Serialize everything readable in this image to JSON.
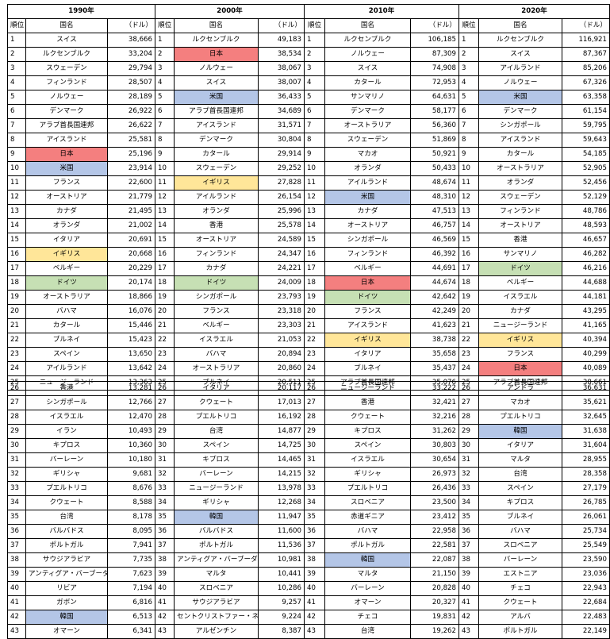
{
  "header": {
    "years": [
      "1990年",
      "2000年",
      "2010年",
      "2020年"
    ],
    "rank_label": "順位",
    "name_label": "国名",
    "value_label": "（ドル）"
  },
  "colors": {
    "japan": "#f47f7f",
    "usa": "#b4c6e7",
    "uk": "#ffe699",
    "germany": "#c6e0b4",
    "korea": "#b4c6e7"
  },
  "columns": [
    {
      "year": "1990年",
      "rows": [
        {
          "rank": "1",
          "name": "スイス",
          "value": "38,666"
        },
        {
          "rank": "2",
          "name": "ルクセンブルク",
          "value": "33,204"
        },
        {
          "rank": "3",
          "name": "スウェーデン",
          "value": "29,794"
        },
        {
          "rank": "4",
          "name": "フィンランド",
          "value": "28,507"
        },
        {
          "rank": "5",
          "name": "ノルウェー",
          "value": "28,189"
        },
        {
          "rank": "6",
          "name": "デンマーク",
          "value": "26,922"
        },
        {
          "rank": "7",
          "name": "アラブ首長国連邦",
          "value": "26,622"
        },
        {
          "rank": "8",
          "name": "アイスランド",
          "value": "25,581"
        },
        {
          "rank": "9",
          "name": "日本",
          "value": "25,196",
          "hl": "japan"
        },
        {
          "rank": "10",
          "name": "米国",
          "value": "23,914",
          "hl": "usa"
        },
        {
          "rank": "11",
          "name": "フランス",
          "value": "22,600"
        },
        {
          "rank": "12",
          "name": "オーストリア",
          "value": "21,779"
        },
        {
          "rank": "13",
          "name": "カナダ",
          "value": "21,495"
        },
        {
          "rank": "14",
          "name": "オランダ",
          "value": "21,002"
        },
        {
          "rank": "15",
          "name": "イタリア",
          "value": "20,691"
        },
        {
          "rank": "16",
          "name": "イギリス",
          "value": "20,668",
          "hl": "uk"
        },
        {
          "rank": "17",
          "name": "ベルギー",
          "value": "20,229"
        },
        {
          "rank": "18",
          "name": "ドイツ",
          "value": "20,174",
          "hl": "germany"
        },
        {
          "rank": "19",
          "name": "オーストラリア",
          "value": "18,866"
        },
        {
          "rank": "20",
          "name": "バハマ",
          "value": "16,076"
        },
        {
          "rank": "21",
          "name": "カタール",
          "value": "15,446"
        },
        {
          "rank": "22",
          "name": "ブルネイ",
          "value": "15,423"
        },
        {
          "rank": "23",
          "name": "スペイン",
          "value": "13,650"
        },
        {
          "rank": "24",
          "name": "アイルランド",
          "value": "13,642"
        },
        {
          "rank": "25",
          "name": "ニュージーランド",
          "value": "13,363"
        },
        {
          "rank": "26",
          "name": "香港",
          "value": "13,281"
        },
        {
          "rank": "27",
          "name": "シンガポール",
          "value": "12,766"
        },
        {
          "rank": "28",
          "name": "イスラエル",
          "value": "12,470"
        },
        {
          "rank": "29",
          "name": "イラン",
          "value": "10,493"
        },
        {
          "rank": "30",
          "name": "キプロス",
          "value": "10,360"
        },
        {
          "rank": "31",
          "name": "バーレーン",
          "value": "10,180"
        },
        {
          "rank": "32",
          "name": "ギリシャ",
          "value": "9,681"
        },
        {
          "rank": "33",
          "name": "プエルトリコ",
          "value": "8,676"
        },
        {
          "rank": "34",
          "name": "クウェート",
          "value": "8,588"
        },
        {
          "rank": "35",
          "name": "台湾",
          "value": "8,178"
        },
        {
          "rank": "36",
          "name": "バルバドス",
          "value": "8,095"
        },
        {
          "rank": "37",
          "name": "ポルトガル",
          "value": "7,941"
        },
        {
          "rank": "38",
          "name": "サウジアラビア",
          "value": "7,735"
        },
        {
          "rank": "39",
          "name": "アンティグア・バーブーダ",
          "value": "7,623"
        },
        {
          "rank": "40",
          "name": "リビア",
          "value": "7,194"
        },
        {
          "rank": "41",
          "name": "ガボン",
          "value": "6,816"
        },
        {
          "rank": "42",
          "name": "韓国",
          "value": "6,513",
          "hl": "korea"
        },
        {
          "rank": "43",
          "name": "オマーン",
          "value": "6,341"
        }
      ]
    },
    {
      "year": "2000年",
      "rows": [
        {
          "rank": "1",
          "name": "ルクセンブルク",
          "value": "49,183"
        },
        {
          "rank": "2",
          "name": "日本",
          "value": "38,534",
          "hl": "japan"
        },
        {
          "rank": "3",
          "name": "ノルウェー",
          "value": "38,067"
        },
        {
          "rank": "4",
          "name": "スイス",
          "value": "38,007"
        },
        {
          "rank": "5",
          "name": "米国",
          "value": "36,433",
          "hl": "usa"
        },
        {
          "rank": "6",
          "name": "アラブ首長国連邦",
          "value": "34,689"
        },
        {
          "rank": "7",
          "name": "アイスランド",
          "value": "31,571"
        },
        {
          "rank": "8",
          "name": "デンマーク",
          "value": "30,804"
        },
        {
          "rank": "9",
          "name": "カタール",
          "value": "29,914"
        },
        {
          "rank": "10",
          "name": "スウェーデン",
          "value": "29,252"
        },
        {
          "rank": "11",
          "name": "イギリス",
          "value": "27,828",
          "hl": "uk"
        },
        {
          "rank": "12",
          "name": "アイルランド",
          "value": "26,154"
        },
        {
          "rank": "13",
          "name": "オランダ",
          "value": "25,996"
        },
        {
          "rank": "14",
          "name": "香港",
          "value": "25,578"
        },
        {
          "rank": "15",
          "name": "オーストリア",
          "value": "24,589"
        },
        {
          "rank": "16",
          "name": "フィンランド",
          "value": "24,347"
        },
        {
          "rank": "17",
          "name": "カナダ",
          "value": "24,221"
        },
        {
          "rank": "18",
          "name": "ドイツ",
          "value": "24,009",
          "hl": "germany"
        },
        {
          "rank": "19",
          "name": "シンガポール",
          "value": "23,793"
        },
        {
          "rank": "20",
          "name": "フランス",
          "value": "23,318"
        },
        {
          "rank": "21",
          "name": "ベルギー",
          "value": "23,303"
        },
        {
          "rank": "22",
          "name": "イスラエル",
          "value": "21,053"
        },
        {
          "rank": "23",
          "name": "バハマ",
          "value": "20,894"
        },
        {
          "rank": "24",
          "name": "オーストラリア",
          "value": "20,860"
        },
        {
          "rank": "25",
          "name": "ブルネイ",
          "value": "20,511"
        },
        {
          "rank": "26",
          "name": "イタリア",
          "value": "20,117"
        },
        {
          "rank": "27",
          "name": "クウェート",
          "value": "17,013"
        },
        {
          "rank": "28",
          "name": "プエルトリコ",
          "value": "16,192"
        },
        {
          "rank": "29",
          "name": "台湾",
          "value": "14,877"
        },
        {
          "rank": "30",
          "name": "スペイン",
          "value": "14,725"
        },
        {
          "rank": "31",
          "name": "キプロス",
          "value": "14,465"
        },
        {
          "rank": "32",
          "name": "バーレーン",
          "value": "14,215"
        },
        {
          "rank": "33",
          "name": "ニュージーランド",
          "value": "13,978"
        },
        {
          "rank": "34",
          "name": "ギリシャ",
          "value": "12,268"
        },
        {
          "rank": "35",
          "name": "韓国",
          "value": "11,947",
          "hl": "korea"
        },
        {
          "rank": "36",
          "name": "バルバドス",
          "value": "11,600"
        },
        {
          "rank": "37",
          "name": "ポルトガル",
          "value": "11,536"
        },
        {
          "rank": "38",
          "name": "アンティグア・バーブーダ",
          "value": "10,981"
        },
        {
          "rank": "39",
          "name": "マルタ",
          "value": "10,441"
        },
        {
          "rank": "40",
          "name": "スロベニア",
          "value": "10,286"
        },
        {
          "rank": "41",
          "name": "サウジアラビア",
          "value": "9,257"
        },
        {
          "rank": "42",
          "name": "セントクリストファー・ネイビス",
          "value": "9,224"
        },
        {
          "rank": "43",
          "name": "アルゼンチン",
          "value": "8,387"
        }
      ]
    },
    {
      "year": "2010年",
      "rows": [
        {
          "rank": "1",
          "name": "ルクセンブルク",
          "value": "106,185"
        },
        {
          "rank": "2",
          "name": "ノルウェー",
          "value": "87,309"
        },
        {
          "rank": "3",
          "name": "スイス",
          "value": "74,908"
        },
        {
          "rank": "4",
          "name": "カタール",
          "value": "72,953"
        },
        {
          "rank": "5",
          "name": "サンマリノ",
          "value": "64,631"
        },
        {
          "rank": "6",
          "name": "デンマーク",
          "value": "58,177"
        },
        {
          "rank": "7",
          "name": "オーストラリア",
          "value": "56,360"
        },
        {
          "rank": "8",
          "name": "スウェーデン",
          "value": "51,869"
        },
        {
          "rank": "9",
          "name": "マカオ",
          "value": "50,921"
        },
        {
          "rank": "10",
          "name": "オランダ",
          "value": "50,433"
        },
        {
          "rank": "11",
          "name": "アイルランド",
          "value": "48,674"
        },
        {
          "rank": "12",
          "name": "米国",
          "value": "48,310",
          "hl": "usa"
        },
        {
          "rank": "13",
          "name": "カナダ",
          "value": "47,513"
        },
        {
          "rank": "14",
          "name": "オーストリア",
          "value": "46,757"
        },
        {
          "rank": "15",
          "name": "シンガポール",
          "value": "46,569"
        },
        {
          "rank": "16",
          "name": "フィンランド",
          "value": "46,392"
        },
        {
          "rank": "17",
          "name": "ベルギー",
          "value": "44,691"
        },
        {
          "rank": "18",
          "name": "日本",
          "value": "44,674",
          "hl": "japan"
        },
        {
          "rank": "19",
          "name": "ドイツ",
          "value": "42,642",
          "hl": "germany"
        },
        {
          "rank": "20",
          "name": "フランス",
          "value": "42,249"
        },
        {
          "rank": "21",
          "name": "アイスランド",
          "value": "41,623"
        },
        {
          "rank": "22",
          "name": "イギリス",
          "value": "38,738",
          "hl": "uk"
        },
        {
          "rank": "23",
          "name": "イタリア",
          "value": "35,658"
        },
        {
          "rank": "24",
          "name": "ブルネイ",
          "value": "35,437"
        },
        {
          "rank": "25",
          "name": "アラブ首長国連邦",
          "value": "35,076"
        },
        {
          "rank": "26",
          "name": "ニュージーランド",
          "value": "33,222"
        },
        {
          "rank": "27",
          "name": "香港",
          "value": "32,421"
        },
        {
          "rank": "28",
          "name": "クウェート",
          "value": "32,216"
        },
        {
          "rank": "29",
          "name": "キプロス",
          "value": "31,262"
        },
        {
          "rank": "30",
          "name": "スペイン",
          "value": "30,803"
        },
        {
          "rank": "31",
          "name": "イスラエル",
          "value": "30,654"
        },
        {
          "rank": "32",
          "name": "ギリシャ",
          "value": "26,973"
        },
        {
          "rank": "33",
          "name": "プエルトリコ",
          "value": "26,436"
        },
        {
          "rank": "34",
          "name": "スロベニア",
          "value": "23,500"
        },
        {
          "rank": "35",
          "name": "赤道ギニア",
          "value": "23,412"
        },
        {
          "rank": "36",
          "name": "バハマ",
          "value": "22,958"
        },
        {
          "rank": "37",
          "name": "ポルトガル",
          "value": "22,581"
        },
        {
          "rank": "38",
          "name": "韓国",
          "value": "22,087",
          "hl": "korea"
        },
        {
          "rank": "39",
          "name": "マルタ",
          "value": "21,150"
        },
        {
          "rank": "40",
          "name": "バーレーン",
          "value": "20,828"
        },
        {
          "rank": "41",
          "name": "オマーン",
          "value": "20,327"
        },
        {
          "rank": "42",
          "name": "チェコ",
          "value": "19,831"
        },
        {
          "rank": "43",
          "name": "台湾",
          "value": "19,262"
        }
      ]
    },
    {
      "year": "2020年",
      "rows": [
        {
          "rank": "1",
          "name": "ルクセンブルク",
          "value": "116,921"
        },
        {
          "rank": "2",
          "name": "スイス",
          "value": "87,367"
        },
        {
          "rank": "3",
          "name": "アイルランド",
          "value": "85,206"
        },
        {
          "rank": "4",
          "name": "ノルウェー",
          "value": "67,326"
        },
        {
          "rank": "5",
          "name": "米国",
          "value": "63,358",
          "hl": "usa"
        },
        {
          "rank": "6",
          "name": "デンマーク",
          "value": "61,154"
        },
        {
          "rank": "7",
          "name": "シンガポール",
          "value": "59,795"
        },
        {
          "rank": "8",
          "name": "アイスランド",
          "value": "59,643"
        },
        {
          "rank": "9",
          "name": "カタール",
          "value": "54,185"
        },
        {
          "rank": "10",
          "name": "オーストラリア",
          "value": "52,905"
        },
        {
          "rank": "11",
          "name": "オランダ",
          "value": "52,456"
        },
        {
          "rank": "12",
          "name": "スウェーデン",
          "value": "52,129"
        },
        {
          "rank": "13",
          "name": "フィンランド",
          "value": "48,786"
        },
        {
          "rank": "14",
          "name": "オーストリア",
          "value": "48,593"
        },
        {
          "rank": "15",
          "name": "香港",
          "value": "46,657"
        },
        {
          "rank": "16",
          "name": "サンマリノ",
          "value": "46,282"
        },
        {
          "rank": "17",
          "name": "ドイツ",
          "value": "46,216",
          "hl": "germany"
        },
        {
          "rank": "18",
          "name": "ベルギー",
          "value": "44,688"
        },
        {
          "rank": "19",
          "name": "イスラエル",
          "value": "44,181"
        },
        {
          "rank": "20",
          "name": "カナダ",
          "value": "43,295"
        },
        {
          "rank": "21",
          "name": "ニュージーランド",
          "value": "41,165"
        },
        {
          "rank": "22",
          "name": "イギリス",
          "value": "40,394",
          "hl": "uk"
        },
        {
          "rank": "23",
          "name": "フランス",
          "value": "40,299"
        },
        {
          "rank": "24",
          "name": "日本",
          "value": "40,089",
          "hl": "japan"
        },
        {
          "rank": "25",
          "name": "アラブ首長国連邦",
          "value": "38,661"
        },
        {
          "rank": "26",
          "name": "アンドラ",
          "value": "36,631"
        },
        {
          "rank": "27",
          "name": "マカオ",
          "value": "35,621"
        },
        {
          "rank": "28",
          "name": "プエルトリコ",
          "value": "32,645"
        },
        {
          "rank": "29",
          "name": "韓国",
          "value": "31,638",
          "hl": "korea"
        },
        {
          "rank": "30",
          "name": "イタリア",
          "value": "31,604"
        },
        {
          "rank": "31",
          "name": "マルタ",
          "value": "28,955"
        },
        {
          "rank": "32",
          "name": "台湾",
          "value": "28,358"
        },
        {
          "rank": "33",
          "name": "スペイン",
          "value": "27,179"
        },
        {
          "rank": "34",
          "name": "キプロス",
          "value": "26,785"
        },
        {
          "rank": "35",
          "name": "ブルネイ",
          "value": "26,061"
        },
        {
          "rank": "36",
          "name": "バハマ",
          "value": "25,734"
        },
        {
          "rank": "37",
          "name": "スロベニア",
          "value": "25,549"
        },
        {
          "rank": "38",
          "name": "バーレーン",
          "value": "23,590"
        },
        {
          "rank": "39",
          "name": "エストニア",
          "value": "23,036"
        },
        {
          "rank": "40",
          "name": "チェコ",
          "value": "22,943"
        },
        {
          "rank": "41",
          "name": "クウェート",
          "value": "22,684"
        },
        {
          "rank": "42",
          "name": "アルバ",
          "value": "22,483"
        },
        {
          "rank": "43",
          "name": "ポルトガル",
          "value": "22,149"
        }
      ]
    }
  ]
}
